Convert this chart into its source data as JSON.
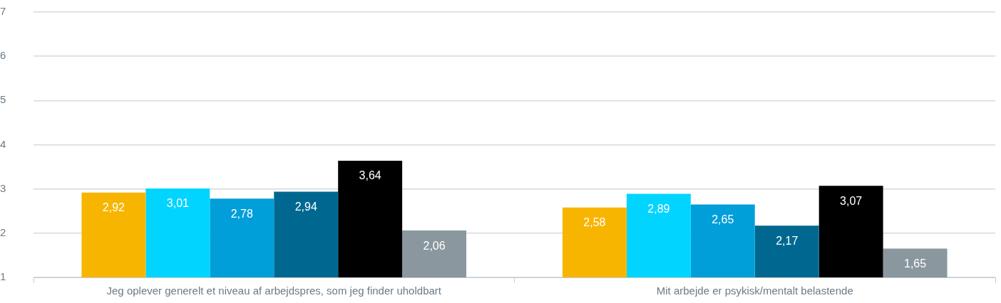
{
  "chart_data": {
    "type": "bar",
    "categories": [
      "Jeg oplever generelt et niveau af arbejdspres, som jeg finder uholdbart",
      "Mit arbejde er psykisk/mentalt belastende"
    ],
    "series": [
      {
        "color": "#f7b500",
        "values": [
          2.92,
          2.58
        ],
        "value_labels": [
          "2,92",
          "2,58"
        ]
      },
      {
        "color": "#00d4ff",
        "values": [
          3.01,
          2.89
        ],
        "value_labels": [
          "3,01",
          "2,89"
        ]
      },
      {
        "color": "#009fd9",
        "values": [
          2.78,
          2.65
        ],
        "value_labels": [
          "2,78",
          "2,65"
        ]
      },
      {
        "color": "#006890",
        "values": [
          2.94,
          2.17
        ],
        "value_labels": [
          "2,94",
          "2,17"
        ]
      },
      {
        "color": "#000000",
        "values": [
          3.64,
          3.07
        ],
        "value_labels": [
          "3,64",
          "3,07"
        ]
      },
      {
        "color": "#8a979e",
        "values": [
          2.06,
          1.65
        ],
        "value_labels": [
          "2,06",
          "1,65"
        ]
      }
    ],
    "ylim": [
      1,
      7
    ],
    "yticks": [
      1,
      2,
      3,
      4,
      5,
      6,
      7
    ],
    "grid": "y",
    "legend": false
  }
}
